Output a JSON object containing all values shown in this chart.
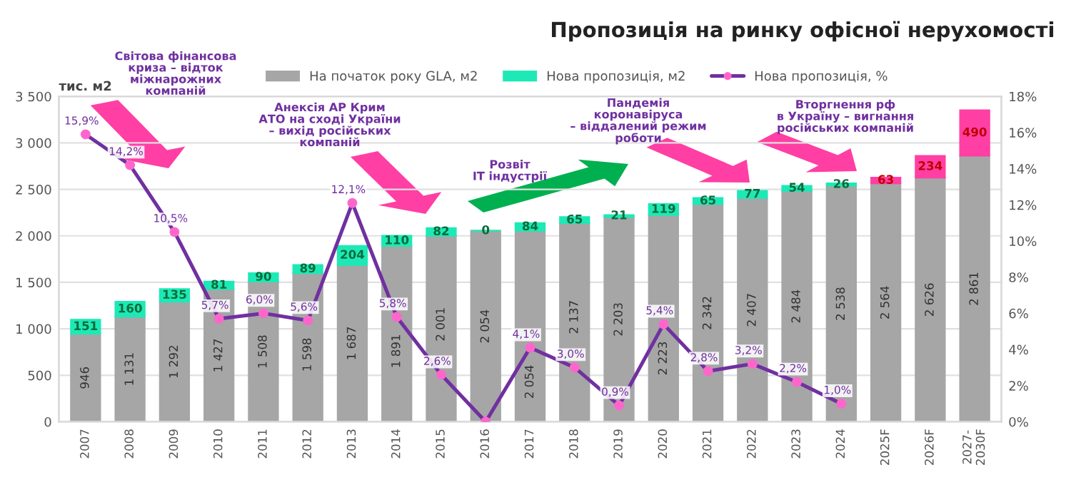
{
  "chart_data": {
    "type": "bar",
    "stacked": true,
    "title": "Пропозиція на ринку офісної нерухомості",
    "ylabel": "тис. м2",
    "categories": [
      "2007",
      "2008",
      "2009",
      "2010",
      "2011",
      "2012",
      "2013",
      "2014",
      "2015",
      "2016",
      "2017",
      "2018",
      "2019",
      "2020",
      "2021",
      "2022",
      "2023",
      "2024",
      "2025F",
      "2026F",
      "2027-\n2030F"
    ],
    "series": [
      {
        "name": "На початок року GLA, м2",
        "color": "#a6a6a6",
        "values": [
          946,
          1131,
          1292,
          1427,
          1508,
          1598,
          1687,
          1891,
          2001,
          2054,
          2054,
          2137,
          2203,
          2223,
          2342,
          2407,
          2484,
          2538,
          2564,
          2626,
          2861
        ],
        "value_labels": [
          "946",
          "1 131",
          "1 292",
          "1 427",
          "1 508",
          "1 598",
          "1 687",
          "1 891",
          "2 001",
          "2 054",
          "2 054",
          "2 137",
          "2 203",
          "2 223",
          "2 342",
          "2 407",
          "2 484",
          "2 538",
          "2 564",
          "2 626",
          "2 861"
        ]
      },
      {
        "name": "Нова пропозиція, м2",
        "color": "#1de9b6",
        "colors": [
          "#1de9b6",
          "#1de9b6",
          "#1de9b6",
          "#1de9b6",
          "#1de9b6",
          "#1de9b6",
          "#1de9b6",
          "#1de9b6",
          "#1de9b6",
          "#1de9b6",
          "#1de9b6",
          "#1de9b6",
          "#1de9b6",
          "#1de9b6",
          "#1de9b6",
          "#1de9b6",
          "#1de9b6",
          "#1de9b6",
          "#ff3fa4",
          "#ff3fa4",
          "#ff3fa4"
        ],
        "values": [
          151,
          160,
          135,
          81,
          90,
          89,
          204,
          110,
          82,
          0,
          84,
          65,
          21,
          119,
          65,
          77,
          54,
          26,
          63,
          234,
          490
        ],
        "value_labels": [
          "151",
          "160",
          "135",
          "81",
          "90",
          "89",
          "204",
          "110",
          "82",
          "0",
          "84",
          "65",
          "21",
          "119",
          "65",
          "77",
          "54",
          "26",
          "63",
          "234",
          "490"
        ]
      },
      {
        "name": "Нова пропозиція, %",
        "type": "line",
        "axis": "y2",
        "color": "#7030a0",
        "values": [
          15.9,
          14.2,
          10.5,
          5.7,
          6.0,
          5.6,
          12.1,
          5.8,
          2.6,
          0.0,
          4.1,
          3.0,
          0.9,
          5.4,
          2.8,
          3.2,
          2.2,
          1.0,
          null,
          null,
          null
        ],
        "value_labels": [
          "15,9%",
          "14,2%",
          "10,5%",
          "5,7%",
          "6,0%",
          "5,6%",
          "12,1%",
          "5,8%",
          "2,6%",
          null,
          "4,1%",
          "3,0%",
          "0,9%",
          "5,4%",
          "2,8%",
          "3,2%",
          "2,2%",
          "1,0%",
          null,
          null,
          null
        ]
      }
    ],
    "marker": "circle",
    "ylim": [
      0,
      3500
    ],
    "yticks": [
      {
        "value": 0,
        "label": "0"
      },
      {
        "value": 500,
        "label": "500"
      },
      {
        "value": 1000,
        "label": "1 000"
      },
      {
        "value": 1500,
        "label": "1 500"
      },
      {
        "value": 2000,
        "label": "2 000"
      },
      {
        "value": 2500,
        "label": "2 500"
      },
      {
        "value": 3000,
        "label": "3 000"
      },
      {
        "value": 3500,
        "label": "3 500"
      }
    ],
    "y2lim": [
      0,
      18
    ],
    "y2ticks": [
      {
        "value": 0,
        "label": "0%"
      },
      {
        "value": 2,
        "label": "2%"
      },
      {
        "value": 4,
        "label": "4%"
      },
      {
        "value": 6,
        "label": "6%"
      },
      {
        "value": 8,
        "label": "8%"
      },
      {
        "value": 10,
        "label": "10%"
      },
      {
        "value": 12,
        "label": "12%"
      },
      {
        "value": 14,
        "label": "14%"
      },
      {
        "value": 16,
        "label": "16%"
      },
      {
        "value": 18,
        "label": "18%"
      }
    ],
    "grid": "y",
    "legend": "top",
    "annotations": [
      "Світова фінансова\nкриза – відток\nміжнарожних\nкомпаній",
      "Анексія АР Крим\nАТО на сході України\n– вихід російських\nкомпаній",
      "Розвіт\nIT індустрії",
      "Пандемія\nкоронавіруса\n– віддалений режим\nроботи",
      "Вторгнення рф\nв Україну – вигнання\nросійських компаній"
    ]
  }
}
